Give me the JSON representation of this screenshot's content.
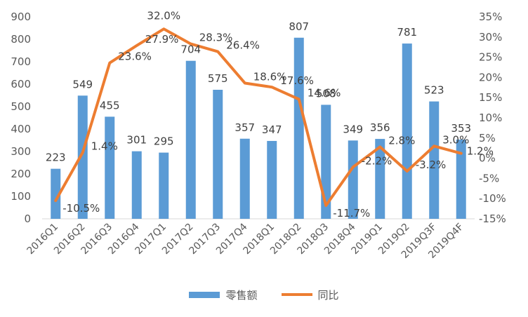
{
  "chart_data": {
    "type": "bar+line",
    "categories": [
      "2016Q1",
      "2016Q2",
      "2016Q3",
      "2016Q4",
      "2017Q1",
      "2017Q2",
      "2017Q3",
      "2017Q4",
      "2018Q1",
      "2018Q2",
      "2018Q3",
      "2018Q4",
      "2019Q1",
      "2019Q2",
      "2019Q3F",
      "2019Q4F"
    ],
    "series": [
      {
        "name": "零售额",
        "type": "bar",
        "axis": "left",
        "color": "#5b9bd5",
        "values": [
          223,
          549,
          455,
          301,
          295,
          704,
          575,
          357,
          347,
          807,
          508,
          349,
          356,
          781,
          523,
          353
        ]
      },
      {
        "name": "同比",
        "type": "line",
        "axis": "right",
        "color": "#ed7d31",
        "values": [
          -10.5,
          1.4,
          23.6,
          27.9,
          32.0,
          28.3,
          26.4,
          18.6,
          17.6,
          14.6,
          -11.7,
          -2.2,
          2.8,
          -3.2,
          3.0,
          1.2
        ],
        "labels": [
          "-10.5%",
          "1.4%",
          "23.6%",
          "27.9%",
          "32.0%",
          "28.3%",
          "26.4%",
          "18.6%",
          "17.6%",
          "14.6%",
          "-11.7%",
          "-2.2%",
          "2.8%",
          "-3.2%",
          "3.0%",
          "1.2%"
        ]
      }
    ],
    "y_left": {
      "min": 0,
      "max": 900,
      "ticks": [
        0,
        100,
        200,
        300,
        400,
        500,
        600,
        700,
        800,
        900
      ]
    },
    "y_right": {
      "min": -15,
      "max": 35,
      "ticks": [
        "-15%",
        "-10%",
        "-5%",
        "0%",
        "5%",
        "10%",
        "15%",
        "20%",
        "25%",
        "30%",
        "35%"
      ]
    },
    "grid": false,
    "legend_position": "bottom"
  }
}
